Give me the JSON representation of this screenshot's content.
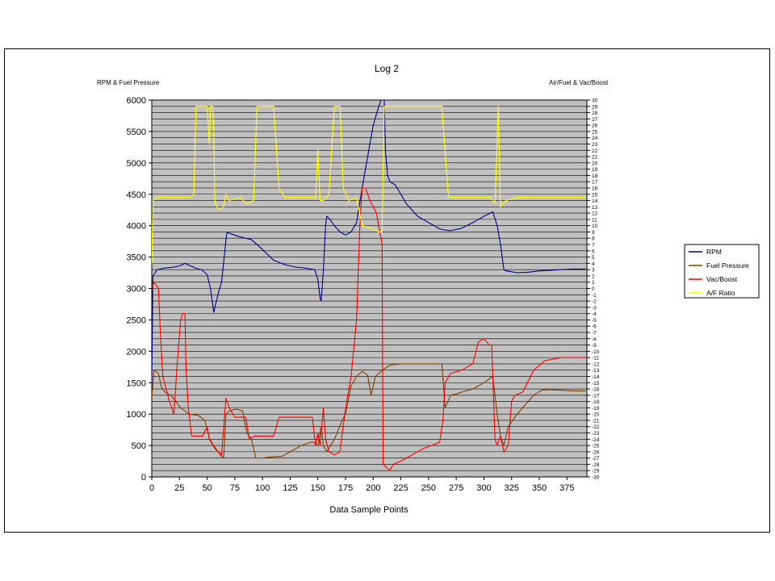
{
  "chart_data": {
    "type": "line",
    "title": "Log 2",
    "xlabel": "Data Sample Points",
    "ylabel_left": "RPM & Fuel Pressure",
    "ylabel_right": "Air/Fuel & Vac/Boost",
    "xlim": [
      0,
      393
    ],
    "ylim_left": [
      0,
      6000
    ],
    "ylim_right": [
      -30,
      30
    ],
    "x_ticks": [
      0,
      25,
      50,
      75,
      100,
      125,
      150,
      175,
      200,
      225,
      250,
      275,
      300,
      325,
      350,
      375
    ],
    "y_ticks_left": [
      0,
      500,
      1000,
      1500,
      2000,
      2500,
      3000,
      3500,
      4000,
      4500,
      5000,
      5500,
      6000
    ],
    "y_ticks_right_step": 1,
    "grid": true,
    "plot_background": "#c0c0c0",
    "legend_position": "right",
    "series": [
      {
        "name": "RPM",
        "axis": "left",
        "color": "#000080",
        "points": [
          [
            0,
            1500
          ],
          [
            1,
            3200
          ],
          [
            5,
            3300
          ],
          [
            10,
            3320
          ],
          [
            20,
            3340
          ],
          [
            25,
            3360
          ],
          [
            30,
            3400
          ],
          [
            35,
            3360
          ],
          [
            40,
            3320
          ],
          [
            45,
            3300
          ],
          [
            50,
            3220
          ],
          [
            53,
            3000
          ],
          [
            55,
            2750
          ],
          [
            56,
            2620
          ],
          [
            57,
            2700
          ],
          [
            60,
            2920
          ],
          [
            63,
            3100
          ],
          [
            65,
            3420
          ],
          [
            67,
            3780
          ],
          [
            68,
            3900
          ],
          [
            70,
            3880
          ],
          [
            75,
            3850
          ],
          [
            80,
            3820
          ],
          [
            90,
            3780
          ],
          [
            100,
            3620
          ],
          [
            110,
            3450
          ],
          [
            120,
            3380
          ],
          [
            130,
            3340
          ],
          [
            140,
            3320
          ],
          [
            147,
            3300
          ],
          [
            150,
            3150
          ],
          [
            152,
            2850
          ],
          [
            153,
            2800
          ],
          [
            155,
            3300
          ],
          [
            157,
            4000
          ],
          [
            158,
            4150
          ],
          [
            160,
            4120
          ],
          [
            165,
            4000
          ],
          [
            170,
            3900
          ],
          [
            175,
            3850
          ],
          [
            180,
            3900
          ],
          [
            185,
            4050
          ],
          [
            190,
            4600
          ],
          [
            195,
            5100
          ],
          [
            200,
            5600
          ],
          [
            205,
            5900
          ],
          [
            207,
            6000
          ],
          [
            210,
            6000
          ],
          [
            211,
            5200
          ],
          [
            213,
            4800
          ],
          [
            215,
            4700
          ],
          [
            220,
            4650
          ],
          [
            225,
            4500
          ],
          [
            230,
            4350
          ],
          [
            240,
            4150
          ],
          [
            250,
            4050
          ],
          [
            260,
            3950
          ],
          [
            265,
            3930
          ],
          [
            270,
            3920
          ],
          [
            280,
            3960
          ],
          [
            290,
            4050
          ],
          [
            300,
            4150
          ],
          [
            308,
            4220
          ],
          [
            312,
            4000
          ],
          [
            315,
            3700
          ],
          [
            318,
            3300
          ],
          [
            320,
            3280
          ],
          [
            330,
            3250
          ],
          [
            340,
            3260
          ],
          [
            350,
            3280
          ],
          [
            360,
            3290
          ],
          [
            370,
            3300
          ],
          [
            380,
            3310
          ],
          [
            392,
            3310
          ]
        ]
      },
      {
        "name": "Fuel Pressure",
        "axis": "left",
        "color": "#804000",
        "points": [
          [
            0,
            1250
          ],
          [
            2,
            1700
          ],
          [
            6,
            1650
          ],
          [
            9,
            1420
          ],
          [
            12,
            1350
          ],
          [
            17,
            1300
          ],
          [
            22,
            1200
          ],
          [
            26,
            1100
          ],
          [
            30,
            1050
          ],
          [
            34,
            1000
          ],
          [
            42,
            980
          ],
          [
            48,
            900
          ],
          [
            52,
            620
          ],
          [
            55,
            520
          ],
          [
            58,
            450
          ],
          [
            62,
            350
          ],
          [
            65,
            300
          ],
          [
            67,
            1000
          ],
          [
            70,
            1050
          ],
          [
            76,
            1080
          ],
          [
            82,
            1050
          ],
          [
            86,
            700
          ],
          [
            90,
            600
          ],
          [
            94,
            300
          ],
          [
            100,
            300
          ],
          [
            110,
            320
          ],
          [
            118,
            330
          ],
          [
            125,
            400
          ],
          [
            135,
            500
          ],
          [
            145,
            560
          ],
          [
            150,
            500
          ],
          [
            153,
            800
          ],
          [
            155,
            500
          ],
          [
            158,
            400
          ],
          [
            165,
            600
          ],
          [
            172,
            900
          ],
          [
            175,
            1000
          ],
          [
            180,
            1450
          ],
          [
            185,
            1600
          ],
          [
            190,
            1680
          ],
          [
            195,
            1620
          ],
          [
            198,
            1300
          ],
          [
            202,
            1600
          ],
          [
            205,
            1650
          ],
          [
            210,
            1720
          ],
          [
            215,
            1780
          ],
          [
            225,
            1800
          ],
          [
            240,
            1800
          ],
          [
            250,
            1800
          ],
          [
            262,
            1800
          ],
          [
            265,
            1100
          ],
          [
            270,
            1300
          ],
          [
            275,
            1320
          ],
          [
            280,
            1350
          ],
          [
            290,
            1400
          ],
          [
            300,
            1500
          ],
          [
            308,
            1600
          ],
          [
            312,
            1000
          ],
          [
            315,
            650
          ],
          [
            318,
            500
          ],
          [
            322,
            800
          ],
          [
            326,
            900
          ],
          [
            330,
            1000
          ],
          [
            335,
            1100
          ],
          [
            340,
            1200
          ],
          [
            345,
            1300
          ],
          [
            352,
            1380
          ],
          [
            360,
            1390
          ],
          [
            370,
            1380
          ],
          [
            380,
            1370
          ],
          [
            392,
            1370
          ]
        ]
      },
      {
        "name": "Vac/Boost",
        "axis": "right",
        "color": "#ff0000",
        "points": [
          [
            0,
            0
          ],
          [
            2,
            1
          ],
          [
            6,
            0
          ],
          [
            8,
            -8
          ],
          [
            10,
            -14
          ],
          [
            13,
            -16
          ],
          [
            16,
            -18
          ],
          [
            20,
            -20
          ],
          [
            23,
            -12
          ],
          [
            26,
            -5
          ],
          [
            28,
            -4
          ],
          [
            30,
            -4
          ],
          [
            31,
            -13
          ],
          [
            33,
            -19
          ],
          [
            36,
            -23.5
          ],
          [
            40,
            -23.5
          ],
          [
            46,
            -23.5
          ],
          [
            50,
            -22
          ],
          [
            52,
            -24
          ],
          [
            57,
            -25.5
          ],
          [
            63,
            -26.5
          ],
          [
            67,
            -17.5
          ],
          [
            70,
            -19
          ],
          [
            75,
            -20.5
          ],
          [
            85,
            -20.5
          ],
          [
            88,
            -24
          ],
          [
            93,
            -23.5
          ],
          [
            100,
            -23.5
          ],
          [
            110,
            -23.5
          ],
          [
            115,
            -20.5
          ],
          [
            130,
            -20.5
          ],
          [
            145,
            -20.5
          ],
          [
            148,
            -25
          ],
          [
            150,
            -23
          ],
          [
            152,
            -25
          ],
          [
            155,
            -19
          ],
          [
            157,
            -24
          ],
          [
            160,
            -26
          ],
          [
            165,
            -26.5
          ],
          [
            170,
            -26
          ],
          [
            172,
            -23
          ],
          [
            176,
            -18
          ],
          [
            180,
            -14
          ],
          [
            185,
            -5
          ],
          [
            188,
            10
          ],
          [
            190,
            16
          ],
          [
            193,
            16
          ],
          [
            197,
            14
          ],
          [
            203,
            12
          ],
          [
            208,
            7
          ],
          [
            209,
            -28
          ],
          [
            215,
            -29
          ],
          [
            218,
            -28
          ],
          [
            225,
            -27.5
          ],
          [
            235,
            -26.5
          ],
          [
            245,
            -25.5
          ],
          [
            260,
            -24.5
          ],
          [
            263,
            -21
          ],
          [
            265,
            -15
          ],
          [
            270,
            -13.5
          ],
          [
            280,
            -13
          ],
          [
            290,
            -12
          ],
          [
            295,
            -8.5
          ],
          [
            300,
            -8
          ],
          [
            305,
            -9
          ],
          [
            307,
            -9
          ],
          [
            310,
            -24
          ],
          [
            312,
            -25
          ],
          [
            315,
            -23.5
          ],
          [
            318,
            -26
          ],
          [
            322,
            -25
          ],
          [
            325,
            -18
          ],
          [
            328,
            -17
          ],
          [
            335,
            -16.5
          ],
          [
            345,
            -13
          ],
          [
            355,
            -11.5
          ],
          [
            370,
            -11
          ],
          [
            385,
            -11
          ],
          [
            392,
            -11
          ]
        ]
      },
      {
        "name": "A/F Ratio",
        "axis": "right",
        "color": "#ffff00",
        "points": [
          [
            0,
            4
          ],
          [
            1,
            14
          ],
          [
            5,
            14.5
          ],
          [
            15,
            14.5
          ],
          [
            25,
            14.5
          ],
          [
            35,
            14.5
          ],
          [
            38,
            15
          ],
          [
            40,
            29
          ],
          [
            50,
            29
          ],
          [
            52,
            23
          ],
          [
            53,
            29
          ],
          [
            55,
            29
          ],
          [
            56,
            25
          ],
          [
            57,
            14
          ],
          [
            60,
            12.5
          ],
          [
            65,
            13
          ],
          [
            67,
            15
          ],
          [
            70,
            14
          ],
          [
            80,
            14.5
          ],
          [
            85,
            13.5
          ],
          [
            92,
            14
          ],
          [
            95,
            29
          ],
          [
            110,
            29
          ],
          [
            115,
            16
          ],
          [
            120,
            14.5
          ],
          [
            140,
            14.5
          ],
          [
            148,
            14.5
          ],
          [
            150,
            22
          ],
          [
            152,
            14
          ],
          [
            155,
            14
          ],
          [
            160,
            15
          ],
          [
            165,
            29
          ],
          [
            170,
            29
          ],
          [
            173,
            16
          ],
          [
            178,
            14
          ],
          [
            185,
            14.5
          ],
          [
            190,
            10
          ],
          [
            200,
            9.5
          ],
          [
            205,
            9
          ],
          [
            208,
            9
          ],
          [
            210,
            29
          ],
          [
            230,
            29
          ],
          [
            250,
            29
          ],
          [
            262,
            29
          ],
          [
            268,
            14.5
          ],
          [
            280,
            14.5
          ],
          [
            290,
            14.5
          ],
          [
            300,
            14.5
          ],
          [
            306,
            14.5
          ],
          [
            310,
            13.5
          ],
          [
            313,
            29
          ],
          [
            315,
            13
          ],
          [
            320,
            14
          ],
          [
            330,
            14.5
          ],
          [
            350,
            14.5
          ],
          [
            370,
            14.5
          ],
          [
            392,
            14.5
          ]
        ]
      }
    ]
  }
}
